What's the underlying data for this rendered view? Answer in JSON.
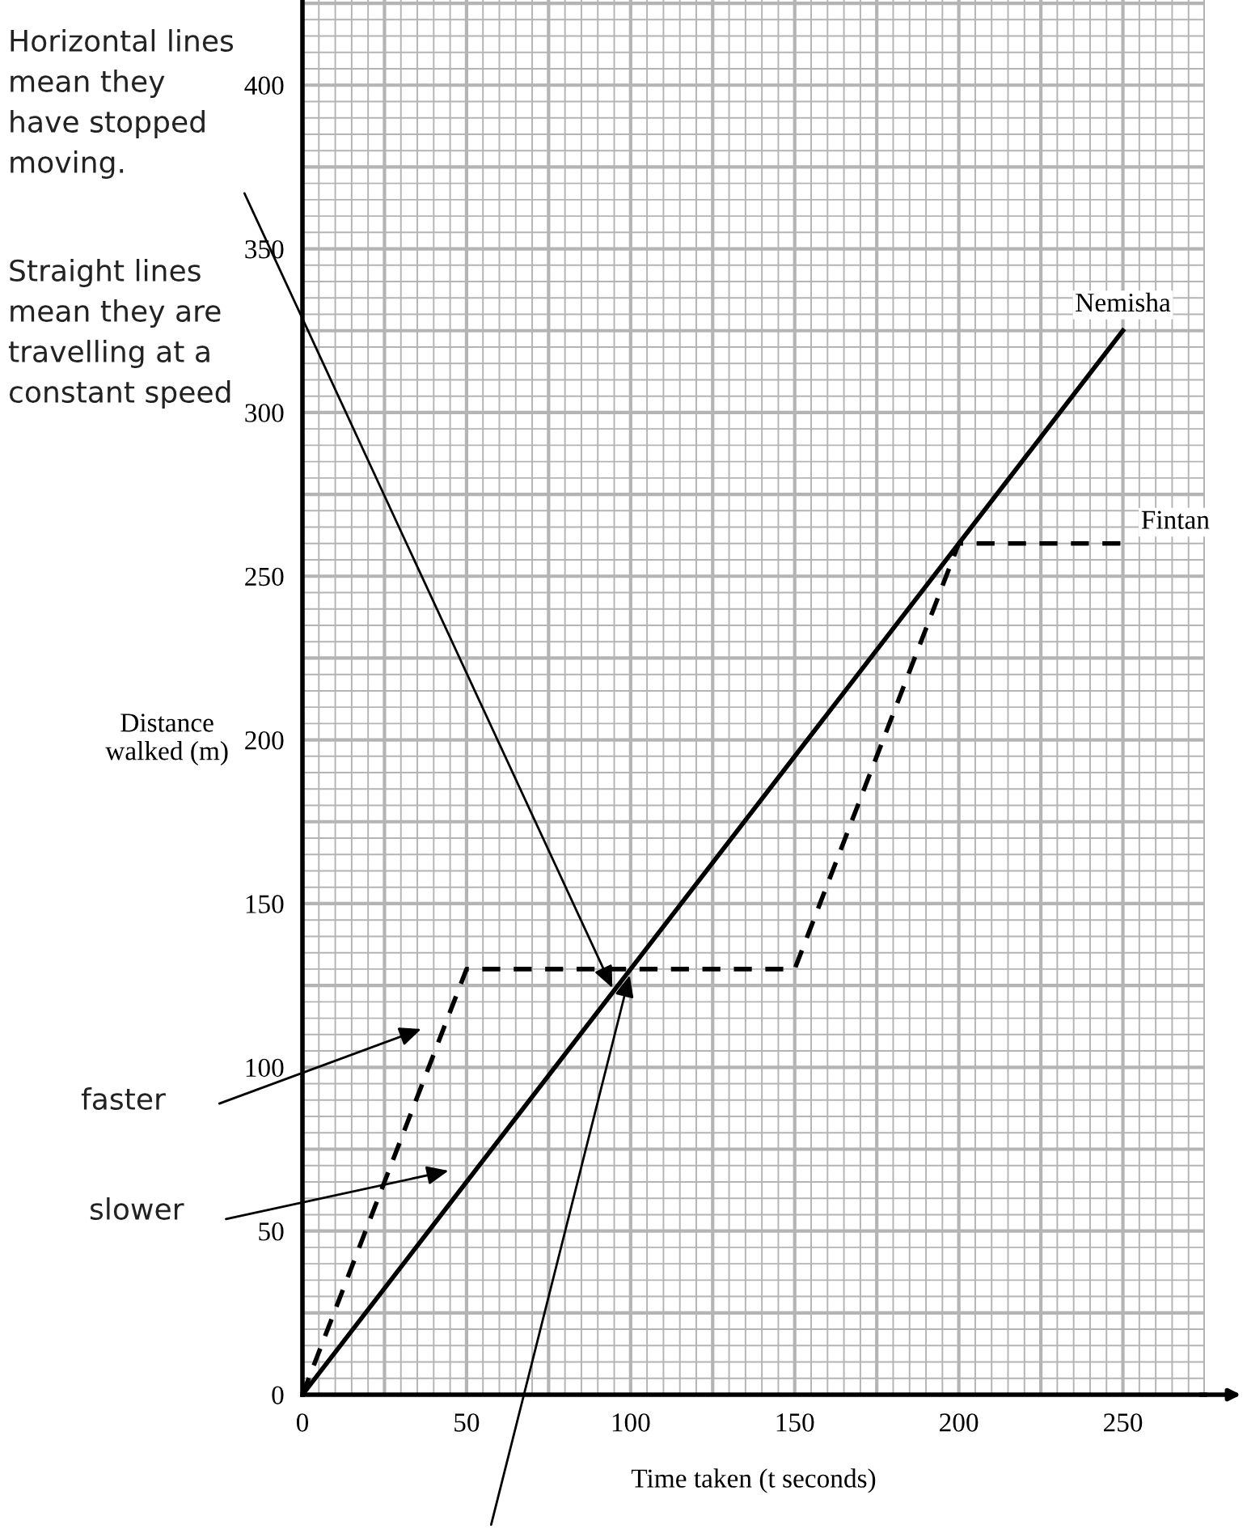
{
  "chart_data": {
    "type": "line",
    "xlabel": "Time taken (t seconds)",
    "ylabel": "Distance\nwalked (m)",
    "xlim": [
      0,
      275
    ],
    "ylim": [
      0,
      426
    ],
    "xticks": [
      0,
      50,
      100,
      150,
      200,
      250
    ],
    "yticks": [
      0,
      50,
      100,
      150,
      200,
      250,
      300,
      350,
      400
    ],
    "grid": true,
    "series": [
      {
        "name": "Nemisha",
        "color": "#000000",
        "line_style": "solid",
        "x": [
          0,
          250
        ],
        "values": [
          0,
          325
        ]
      },
      {
        "name": "Fintan",
        "color": "#000000",
        "line_style": "dashed",
        "x": [
          0,
          50,
          150,
          200,
          250
        ],
        "values": [
          0,
          130,
          130,
          260,
          260
        ]
      }
    ],
    "annotations": [
      {
        "text": "Horizontal lines\nmean they\nhave stopped\nmoving.",
        "x": 95,
        "y": 123
      },
      "Straight lines\nmean they are\ntravelling at a\nconstant speed",
      "faster",
      "slower"
    ]
  }
}
